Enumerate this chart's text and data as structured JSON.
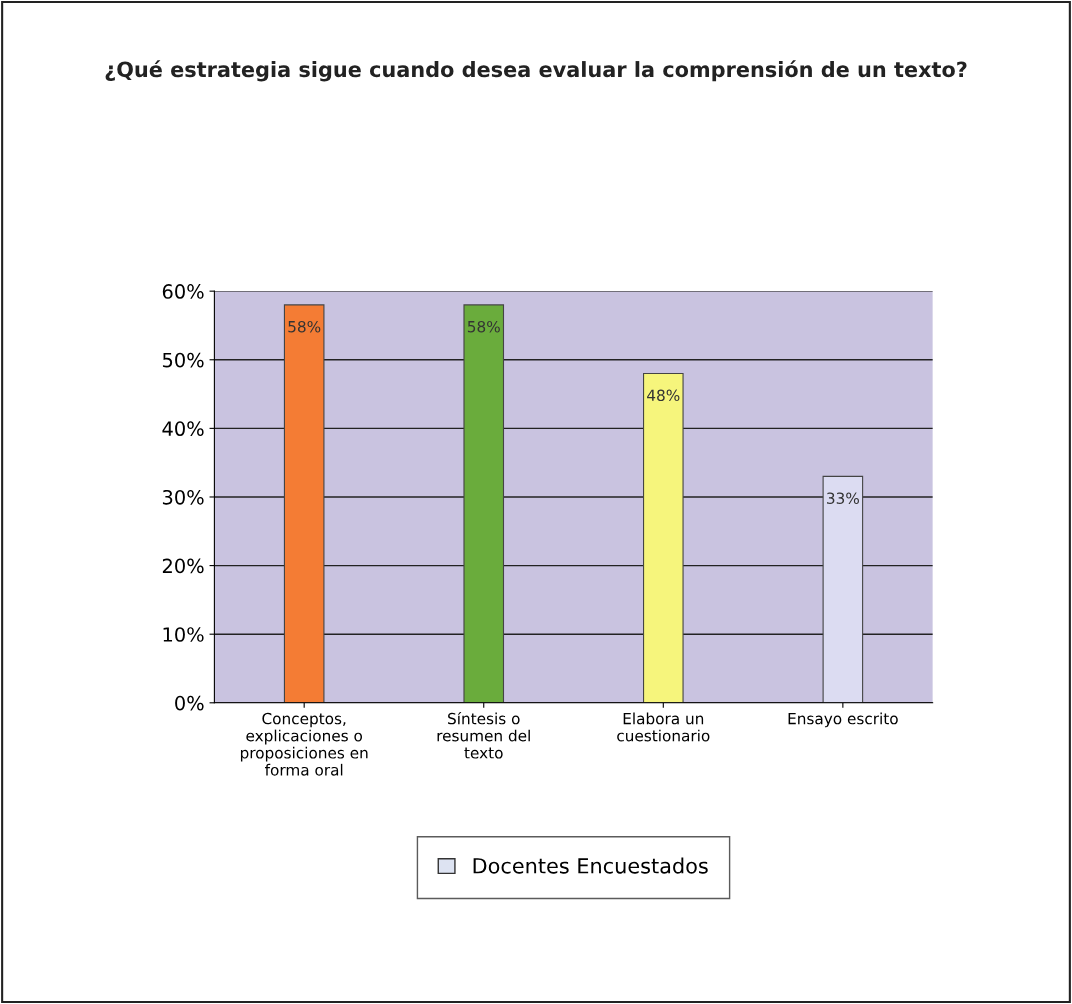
{
  "chart_data": {
    "type": "bar",
    "title": "¿Qué estrategia sigue cuando desea evaluar la comprensión de un texto?",
    "categories": [
      "Conceptos, explicaciones o proposiciones en forma oral",
      "Síntesis o resumen del texto",
      "Elabora un cuestionario",
      "Ensayo escrito"
    ],
    "series": [
      {
        "name": "Docentes Encuestados",
        "color": "#dde3f2",
        "colors": [
          "#f47c34",
          "#6aac3c",
          "#f6f57c",
          "#dcdcf2"
        ],
        "values": [
          58,
          58,
          48,
          33
        ],
        "value_labels": [
          "58%",
          "58%",
          "48%",
          "33%"
        ]
      }
    ],
    "ylim": [
      0,
      60
    ],
    "yticks": [
      {
        "value": 0,
        "label": "0%"
      },
      {
        "value": 10,
        "label": "10%"
      },
      {
        "value": 20,
        "label": "20%"
      },
      {
        "value": 30,
        "label": "30%"
      },
      {
        "value": 40,
        "label": "40%"
      },
      {
        "value": 50,
        "label": "50%"
      },
      {
        "value": 60,
        "label": "60%"
      }
    ],
    "grid": "y",
    "legend": "bottom"
  }
}
